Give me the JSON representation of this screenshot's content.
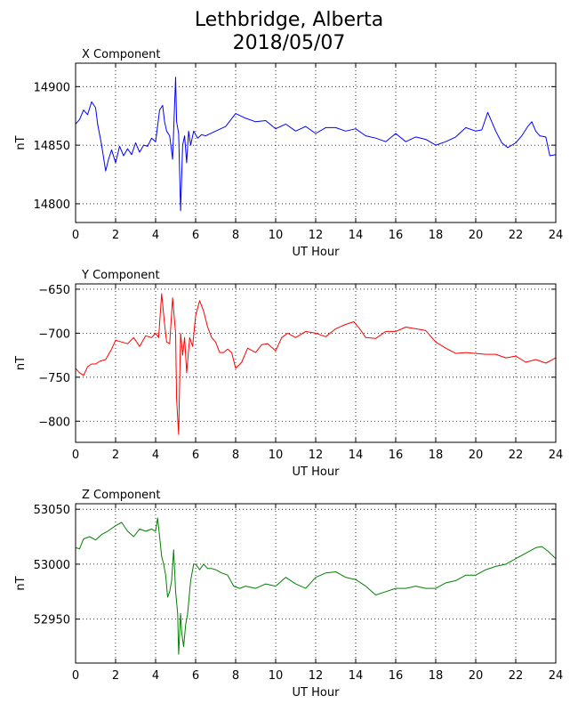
{
  "page": {
    "title_line1": "Lethbridge, Alberta",
    "title_line2": "2018/05/07"
  },
  "chart_data": [
    {
      "type": "line",
      "title": "X Component",
      "xlabel": "UT Hour",
      "ylabel": "nT",
      "xlim": [
        0,
        24
      ],
      "ylim": [
        14784,
        14920
      ],
      "xticks": [
        0,
        2,
        4,
        6,
        8,
        10,
        12,
        14,
        16,
        18,
        20,
        22,
        24
      ],
      "yticks": [
        14800,
        14850,
        14900
      ],
      "grid": true,
      "color": "#0000ff",
      "x": [
        0,
        0.2,
        0.4,
        0.6,
        0.8,
        1.0,
        1.1,
        1.3,
        1.5,
        1.65,
        1.8,
        2.0,
        2.2,
        2.4,
        2.6,
        2.8,
        3.0,
        3.2,
        3.4,
        3.6,
        3.8,
        4.0,
        4.2,
        4.35,
        4.45,
        4.55,
        4.7,
        4.85,
        5.0,
        5.05,
        5.15,
        5.25,
        5.35,
        5.45,
        5.55,
        5.65,
        5.75,
        5.9,
        6.1,
        6.3,
        6.5,
        7.0,
        7.5,
        8.0,
        8.5,
        9.0,
        9.5,
        10.0,
        10.5,
        11.0,
        11.5,
        12.0,
        12.5,
        13.0,
        13.5,
        14.0,
        14.5,
        15.0,
        15.5,
        16.0,
        16.5,
        17.0,
        17.5,
        18.0,
        18.5,
        19.0,
        19.5,
        20.0,
        20.3,
        20.6,
        20.8,
        21.0,
        21.3,
        21.6,
        22.0,
        22.3,
        22.6,
        22.8,
        23.0,
        23.2,
        23.5,
        23.7,
        24.0
      ],
      "values": [
        14868,
        14872,
        14880,
        14876,
        14887,
        14882,
        14868,
        14850,
        14828,
        14838,
        14846,
        14835,
        14849,
        14841,
        14847,
        14842,
        14852,
        14844,
        14850,
        14849,
        14856,
        14853,
        14880,
        14884,
        14870,
        14862,
        14858,
        14838,
        14908,
        14870,
        14860,
        14794,
        14850,
        14858,
        14835,
        14862,
        14850,
        14862,
        14856,
        14859,
        14858,
        14862,
        14866,
        14877,
        14873,
        14870,
        14871,
        14864,
        14868,
        14862,
        14866,
        14860,
        14865,
        14865,
        14862,
        14864,
        14858,
        14856,
        14853,
        14860,
        14853,
        14857,
        14855,
        14850,
        14853,
        14857,
        14865,
        14862,
        14863,
        14878,
        14870,
        14862,
        14852,
        14848,
        14852,
        14858,
        14866,
        14870,
        14862,
        14858,
        14857,
        14841,
        14842
      ]
    },
    {
      "type": "line",
      "title": "Y Component",
      "xlabel": "UT Hour",
      "ylabel": "nT",
      "xlim": [
        0,
        24
      ],
      "ylim": [
        -824,
        -644
      ],
      "xticks": [
        0,
        2,
        4,
        6,
        8,
        10,
        12,
        14,
        16,
        18,
        20,
        22,
        24
      ],
      "yticks": [
        -650,
        -700,
        -750,
        -800
      ],
      "grid": true,
      "color": "#ff0000",
      "x": [
        0,
        0.2,
        0.4,
        0.6,
        0.8,
        1.0,
        1.2,
        1.5,
        1.8,
        2.0,
        2.3,
        2.6,
        2.9,
        3.2,
        3.5,
        3.8,
        4.0,
        4.15,
        4.3,
        4.45,
        4.55,
        4.7,
        4.85,
        5.0,
        5.05,
        5.15,
        5.25,
        5.35,
        5.45,
        5.55,
        5.7,
        5.85,
        6.0,
        6.2,
        6.4,
        6.6,
        6.8,
        7.0,
        7.2,
        7.4,
        7.6,
        7.8,
        8.0,
        8.3,
        8.6,
        9.0,
        9.3,
        9.6,
        10.0,
        10.3,
        10.6,
        11.0,
        11.5,
        12.0,
        12.5,
        13.0,
        13.5,
        13.9,
        14.2,
        14.5,
        15.0,
        15.5,
        16.0,
        16.5,
        17.0,
        17.5,
        18.0,
        18.5,
        19.0,
        19.5,
        20.0,
        20.5,
        21.0,
        21.5,
        22.0,
        22.5,
        23.0,
        23.5,
        24.0
      ],
      "values": [
        -740,
        -745,
        -748,
        -738,
        -735,
        -735,
        -732,
        -730,
        -718,
        -708,
        -710,
        -712,
        -705,
        -715,
        -703,
        -705,
        -700,
        -705,
        -655,
        -690,
        -710,
        -712,
        -660,
        -700,
        -775,
        -815,
        -700,
        -725,
        -705,
        -745,
        -705,
        -715,
        -680,
        -663,
        -675,
        -693,
        -705,
        -710,
        -722,
        -722,
        -718,
        -722,
        -740,
        -733,
        -717,
        -722,
        -713,
        -712,
        -720,
        -705,
        -700,
        -705,
        -698,
        -700,
        -704,
        -695,
        -690,
        -687,
        -695,
        -705,
        -706,
        -698,
        -698,
        -693,
        -695,
        -697,
        -710,
        -717,
        -723,
        -722,
        -723,
        -724,
        -724,
        -728,
        -726,
        -733,
        -730,
        -734,
        -728
      ]
    },
    {
      "type": "line",
      "title": "Z Component",
      "xlabel": "UT Hour",
      "ylabel": "nT",
      "xlim": [
        0,
        24
      ],
      "ylim": [
        52910,
        53055
      ],
      "xticks": [
        0,
        2,
        4,
        6,
        8,
        10,
        12,
        14,
        16,
        18,
        20,
        22,
        24
      ],
      "yticks": [
        52950,
        53000,
        53050
      ],
      "grid": true,
      "color": "#008000",
      "x": [
        0,
        0.2,
        0.4,
        0.7,
        1.0,
        1.3,
        1.6,
        2.0,
        2.3,
        2.6,
        2.9,
        3.2,
        3.5,
        3.8,
        4.0,
        4.1,
        4.2,
        4.3,
        4.4,
        4.5,
        4.6,
        4.7,
        4.8,
        4.9,
        5.0,
        5.1,
        5.15,
        5.25,
        5.3,
        5.4,
        5.5,
        5.6,
        5.75,
        5.9,
        6.0,
        6.2,
        6.4,
        6.6,
        6.8,
        7.0,
        7.3,
        7.6,
        7.9,
        8.2,
        8.5,
        9.0,
        9.5,
        10.0,
        10.5,
        11.0,
        11.5,
        12.0,
        12.5,
        13.0,
        13.5,
        14.0,
        14.5,
        15.0,
        15.5,
        16.0,
        16.5,
        17.0,
        17.5,
        18.0,
        18.5,
        19.0,
        19.5,
        20.0,
        20.5,
        21.0,
        21.5,
        22.0,
        22.5,
        23.0,
        23.3,
        23.6,
        24.0
      ],
      "values": [
        53015,
        53014,
        53023,
        53025,
        53022,
        53027,
        53030,
        53035,
        53038,
        53030,
        53025,
        53032,
        53030,
        53032,
        53030,
        53042,
        53025,
        53007,
        53000,
        52990,
        52970,
        52975,
        52985,
        53013,
        52975,
        52955,
        52918,
        52955,
        52938,
        52925,
        52945,
        52955,
        52985,
        53000,
        53000,
        52995,
        53000,
        52996,
        52996,
        52995,
        52992,
        52990,
        52980,
        52978,
        52980,
        52978,
        52982,
        52980,
        52988,
        52982,
        52978,
        52988,
        52992,
        52993,
        52988,
        52986,
        52980,
        52972,
        52975,
        52978,
        52978,
        52980,
        52978,
        52978,
        52983,
        52985,
        52990,
        52990,
        52995,
        52998,
        53000,
        53005,
        53010,
        53015,
        53016,
        53012,
        53005
      ]
    }
  ]
}
